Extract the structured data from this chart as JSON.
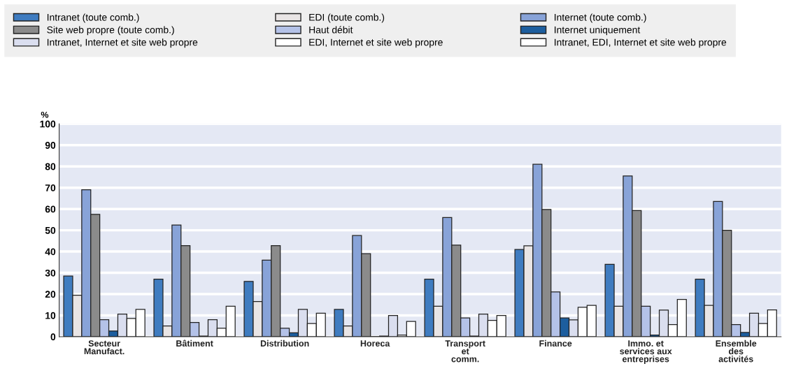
{
  "chart_data": {
    "type": "bar",
    "ylabel": "%",
    "categories": [
      "Secteur\nManufact.",
      "Bâtiment",
      "Distribution",
      "Horeca",
      "Transport\net\ncomm.",
      "Finance",
      "Immo. et\nservices aux\nentreprises",
      "Ensemble\ndes\nactivités"
    ],
    "series": [
      {
        "name": "Intranet (toute comb.)",
        "color": "#3f7cc0",
        "values": [
          28.5,
          27,
          26,
          12.8,
          27,
          41,
          34,
          27
        ]
      },
      {
        "name": "EDI (toute comb.)",
        "color": "#e9e5e5",
        "values": [
          19.5,
          5,
          16.5,
          5,
          14.3,
          42.7,
          14.3,
          14.7
        ]
      },
      {
        "name": "Internet (toute comb.)",
        "color": "#88a3d8",
        "values": [
          69,
          52.5,
          36,
          47.5,
          56,
          81,
          75.5,
          63.5
        ]
      },
      {
        "name": "Site web propre (toute comb.)",
        "color": "#8b8b8b",
        "values": [
          57.5,
          42.8,
          42.8,
          39,
          43,
          59.8,
          59.3,
          50
        ]
      },
      {
        "name": "Haut débit",
        "color": "#b4c2e8",
        "values": [
          8,
          6.7,
          4,
          null,
          8.8,
          21,
          14.3,
          5.7
        ]
      },
      {
        "name": "Internet uniquement",
        "color": "#1d5e9e",
        "values": [
          2.7,
          0.3,
          1.8,
          0.3,
          0.3,
          8.8,
          0.8,
          2
        ]
      },
      {
        "name": "Intranet, Internet et site web propre",
        "color": "#dadeef",
        "values": [
          10.6,
          8,
          12.8,
          10,
          10.6,
          7.9,
          12.5,
          11
        ]
      },
      {
        "name": "EDI, Internet et site web propre",
        "color": "#ffffff",
        "values": [
          8.6,
          4,
          6.2,
          0.8,
          7.7,
          13.8,
          5.7,
          6.2
        ]
      },
      {
        "name": "Intranet, EDI, Internet et site web propre",
        "color": "#ffffff",
        "values": [
          12.8,
          14.3,
          11,
          7.2,
          10,
          14.7,
          17.5,
          12.6
        ]
      }
    ],
    "ylim": [
      0,
      100
    ],
    "yticks": [
      0,
      10,
      20,
      30,
      40,
      50,
      60,
      70,
      80,
      90,
      100
    ],
    "grid": "y",
    "legend": "top left"
  }
}
